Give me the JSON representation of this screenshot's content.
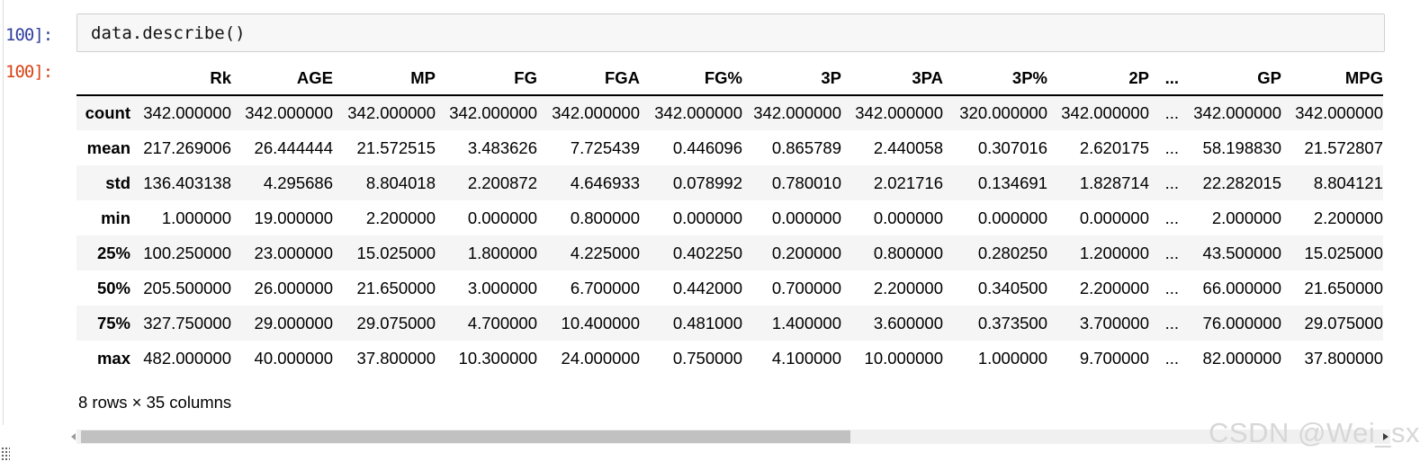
{
  "notebook": {
    "input_prompt": "100]:",
    "output_prompt": "100]:",
    "code": "data.describe()"
  },
  "table": {
    "headers": [
      "",
      "Rk",
      "AGE",
      "MP",
      "FG",
      "FGA",
      "FG%",
      "3P",
      "3PA",
      "3P%",
      "2P",
      "...",
      "GP",
      "MPG"
    ],
    "rows": [
      {
        "label": "count",
        "values": [
          "342.000000",
          "342.000000",
          "342.000000",
          "342.000000",
          "342.000000",
          "342.000000",
          "342.000000",
          "342.000000",
          "320.000000",
          "342.000000",
          "...",
          "342.000000",
          "342.000000"
        ]
      },
      {
        "label": "mean",
        "values": [
          "217.269006",
          "26.444444",
          "21.572515",
          "3.483626",
          "7.725439",
          "0.446096",
          "0.865789",
          "2.440058",
          "0.307016",
          "2.620175",
          "...",
          "58.198830",
          "21.572807"
        ]
      },
      {
        "label": "std",
        "values": [
          "136.403138",
          "4.295686",
          "8.804018",
          "2.200872",
          "4.646933",
          "0.078992",
          "0.780010",
          "2.021716",
          "0.134691",
          "1.828714",
          "...",
          "22.282015",
          "8.804121"
        ]
      },
      {
        "label": "min",
        "values": [
          "1.000000",
          "19.000000",
          "2.200000",
          "0.000000",
          "0.800000",
          "0.000000",
          "0.000000",
          "0.000000",
          "0.000000",
          "0.000000",
          "...",
          "2.000000",
          "2.200000"
        ]
      },
      {
        "label": "25%",
        "values": [
          "100.250000",
          "23.000000",
          "15.025000",
          "1.800000",
          "4.225000",
          "0.402250",
          "0.200000",
          "0.800000",
          "0.280250",
          "1.200000",
          "...",
          "43.500000",
          "15.025000"
        ]
      },
      {
        "label": "50%",
        "values": [
          "205.500000",
          "26.000000",
          "21.650000",
          "3.000000",
          "6.700000",
          "0.442000",
          "0.700000",
          "2.200000",
          "0.340500",
          "2.200000",
          "...",
          "66.000000",
          "21.650000"
        ]
      },
      {
        "label": "75%",
        "values": [
          "327.750000",
          "29.000000",
          "29.075000",
          "4.700000",
          "10.400000",
          "0.481000",
          "1.400000",
          "3.600000",
          "0.373500",
          "3.700000",
          "...",
          "76.000000",
          "29.075000"
        ]
      },
      {
        "label": "max",
        "values": [
          "482.000000",
          "40.000000",
          "37.800000",
          "10.300000",
          "24.000000",
          "0.750000",
          "4.100000",
          "10.000000",
          "1.000000",
          "9.700000",
          "...",
          "82.000000",
          "37.800000"
        ]
      }
    ],
    "summary": "8 rows × 35 columns"
  },
  "watermark": "CSDN @Wei_sx",
  "colors": {
    "input_prompt": "#303F9F",
    "output_prompt": "#D84315",
    "stripe": "#f5f5f5",
    "cell_bg": "#f7f7f7",
    "cell_border": "#cfcfcf",
    "watermark": "#d7d7d7"
  }
}
